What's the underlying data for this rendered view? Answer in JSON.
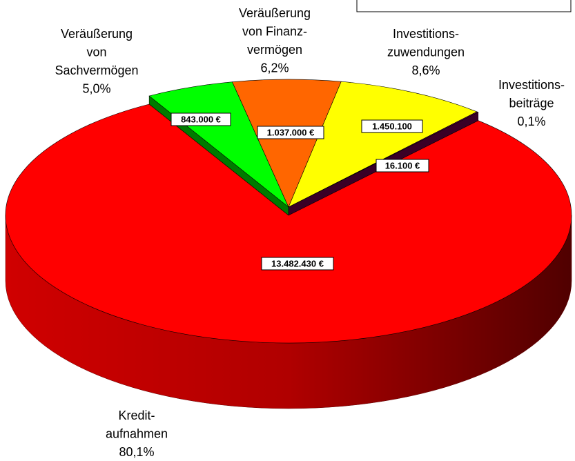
{
  "chart_data": {
    "type": "pie3d",
    "categories": [
      [
        "Veräußerung",
        "von",
        "Sachvermögen"
      ],
      [
        "Veräußerung",
        "von Finanz-",
        "vermögen"
      ],
      [
        "Investitions-",
        "zuwendungen"
      ],
      [
        "Investitions-",
        "beiträge"
      ],
      [
        "Kredit-",
        "aufnahmen"
      ]
    ],
    "values": [
      843000,
      1037000,
      1450100,
      16100,
      13482430
    ],
    "value_labels": [
      "843.000 €",
      "1.037.000 €",
      "1.450.100",
      "16.100  €",
      "13.482.430 €"
    ],
    "percent_labels": [
      "5,0%",
      "6,2%",
      "8,6%",
      "0,1%",
      "80,1%"
    ],
    "colors": [
      "#00ff00",
      "#ff6600",
      "#ffff00",
      "#660044",
      "#ff0000"
    ],
    "side_colors": [
      "#007a00",
      "#b04000",
      "#a0a000",
      "#3a0026",
      "#a00000"
    ]
  }
}
